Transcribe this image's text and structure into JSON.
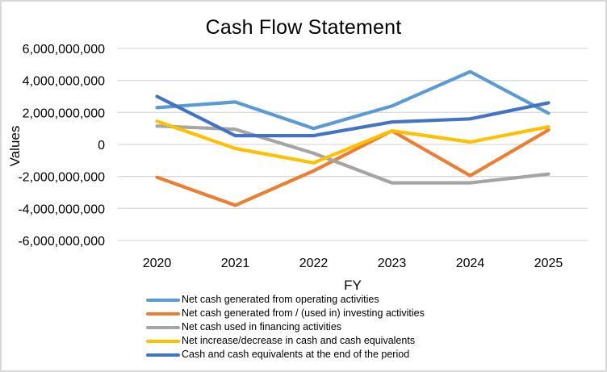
{
  "chart_data": {
    "type": "line",
    "title": "Cash Flow Statement",
    "xlabel": "FY",
    "ylabel": "Values",
    "categories": [
      "2020",
      "2021",
      "2022",
      "2023",
      "2024",
      "2025"
    ],
    "ylim": [
      -6000000000,
      6000000000
    ],
    "yticks": [
      6000000000,
      4000000000,
      2000000000,
      0,
      -2000000000,
      -4000000000,
      -6000000000
    ],
    "ytick_labels": [
      "6,000,000,000",
      "4,000,000,000",
      "2,000,000,000",
      "0",
      "-2,000,000,000",
      "-4,000,000,000",
      "-6,000,000,000"
    ],
    "grid": true,
    "legend_position": "bottom",
    "series": [
      {
        "name": "Net cash generated from operating activities",
        "color": "#5b9bd5",
        "values": [
          2300000000,
          2650000000,
          1000000000,
          2400000000,
          4550000000,
          1950000000
        ]
      },
      {
        "name": "Net cash generated from / (used in) investing activities",
        "color": "#ed7d31",
        "values": [
          -2050000000,
          -3800000000,
          -1650000000,
          850000000,
          -1950000000,
          900000000
        ]
      },
      {
        "name": "Net cash used in financing activities",
        "color": "#a5a5a5",
        "values": [
          1150000000,
          950000000,
          -550000000,
          -2400000000,
          -2400000000,
          -1850000000
        ]
      },
      {
        "name": "Net increase/decrease in cash and cash equivalents",
        "color": "#ffc000",
        "values": [
          1450000000,
          -250000000,
          -1150000000,
          850000000,
          150000000,
          1100000000
        ]
      },
      {
        "name": "Cash and cash equivalents at the end of the period",
        "color": "#4472c4",
        "values": [
          3000000000,
          550000000,
          550000000,
          1400000000,
          1600000000,
          2600000000
        ]
      }
    ]
  }
}
